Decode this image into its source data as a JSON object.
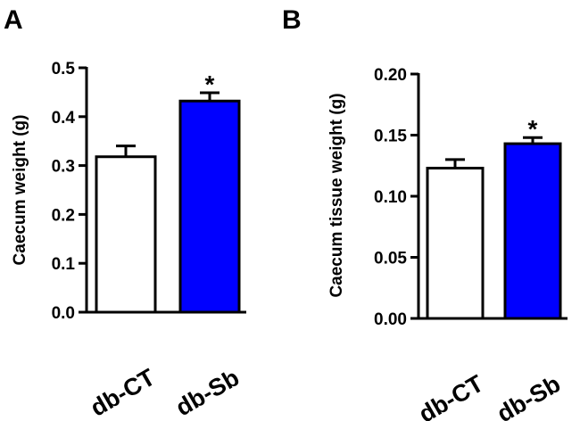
{
  "figure": {
    "panels": [
      "A",
      "B"
    ]
  },
  "chart_data": [
    {
      "type": "bar",
      "panel": "A",
      "title": "",
      "xlabel": "",
      "ylabel": "Caecum weight (g)",
      "categories": [
        "db-CT",
        "db-Sb"
      ],
      "values": [
        0.318,
        0.432
      ],
      "errors": [
        0.022,
        0.017
      ],
      "colors": [
        "#ffffff",
        "#0000ff"
      ],
      "significance": [
        "",
        "*"
      ],
      "ylim": [
        0,
        0.5
      ],
      "yticks": [
        0.0,
        0.1,
        0.2,
        0.3,
        0.4,
        0.5
      ],
      "ytick_labels": [
        "0.0",
        "0.1",
        "0.2",
        "0.3",
        "0.4",
        "0.5"
      ],
      "grid": false
    },
    {
      "type": "bar",
      "panel": "B",
      "title": "",
      "xlabel": "",
      "ylabel": "Caecum tissue weight (g)",
      "categories": [
        "db-CT",
        "db-Sb"
      ],
      "values": [
        0.123,
        0.143
      ],
      "errors": [
        0.007,
        0.005
      ],
      "colors": [
        "#ffffff",
        "#0000ff"
      ],
      "significance": [
        "",
        "*"
      ],
      "ylim": [
        0,
        0.2
      ],
      "yticks": [
        0.0,
        0.05,
        0.1,
        0.15,
        0.2
      ],
      "ytick_labels": [
        "0.00",
        "0.05",
        "0.10",
        "0.15",
        "0.20"
      ],
      "grid": false
    }
  ]
}
